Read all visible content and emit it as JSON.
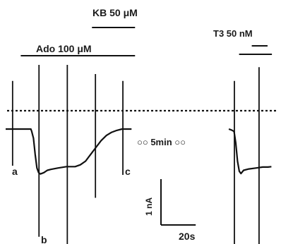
{
  "chart_data": {
    "type": "line",
    "units": {
      "current": "nA",
      "time": "s"
    },
    "scale_bars": {
      "current_label": "1 nA",
      "current_value_nA": 1,
      "time_label": "20s",
      "time_value_s": 20
    },
    "treatment_bars": [
      {
        "label": "KB 50 μM",
        "start_s": 49.7,
        "end_s": 74.5
      },
      {
        "label": "Ado 100 μM",
        "start_s": 8.7,
        "end_s": 74.5
      },
      {
        "label": "T3 50 nM",
        "start_s": 134.4,
        "end_s": 153.3,
        "inner_start_s": 141.7,
        "inner_end_s": 150.8
      }
    ],
    "gap_label": "○○ 5min ○○",
    "points": [
      {
        "label": "a",
        "t_s": 4.0
      },
      {
        "label": "b",
        "t_s": 19.2
      },
      {
        "label": "c",
        "t_s": 67.5
      }
    ],
    "dotted_reference_nA": 0.4,
    "series": [
      {
        "segment": "before gap",
        "t_s": [
          0,
          2,
          5,
          8,
          12,
          14.5,
          15,
          16,
          17,
          18,
          19,
          20,
          22,
          24,
          26,
          30,
          35,
          40,
          43,
          46,
          49,
          52,
          55,
          58,
          61,
          64,
          67,
          70,
          72.5
        ],
        "i_nA": [
          0,
          0,
          0,
          0,
          0,
          0,
          -0.05,
          -0.2,
          -0.55,
          -0.85,
          -0.95,
          -0.98,
          -0.95,
          -0.9,
          -0.88,
          -0.85,
          -0.82,
          -0.82,
          -0.78,
          -0.7,
          -0.55,
          -0.4,
          -0.25,
          -0.14,
          -0.07,
          -0.03,
          0,
          0,
          0
        ]
      },
      {
        "segment": "after gap",
        "t_s": [
          128.5,
          130,
          131.5,
          132.5,
          133.5,
          134.5,
          135.5,
          137,
          140,
          144,
          148,
          151,
          153
        ],
        "i_nA": [
          0,
          -0.02,
          -0.05,
          -0.3,
          -0.7,
          -0.92,
          -0.97,
          -0.9,
          -0.87,
          -0.85,
          -0.83,
          -0.83,
          -0.82
        ]
      }
    ],
    "spikes": [
      {
        "t_s": 4.0,
        "top_nA": 1.05,
        "bottom_nA": -0.8
      },
      {
        "t_s": 19.2,
        "top_nA": 1.4,
        "bottom_nA": -2.35
      },
      {
        "t_s": 35.5,
        "top_nA": 1.4,
        "bottom_nA": -2.55
      },
      {
        "t_s": 51.7,
        "top_nA": 1.2,
        "bottom_nA": -1.5
      },
      {
        "t_s": 67.5,
        "top_nA": 1.05,
        "bottom_nA": -1.0
      },
      {
        "t_s": 131.7,
        "top_nA": 1.05,
        "bottom_nA": -2.55
      },
      {
        "t_s": 145.9,
        "top_nA": 1.35,
        "bottom_nA": -2.55
      }
    ]
  }
}
